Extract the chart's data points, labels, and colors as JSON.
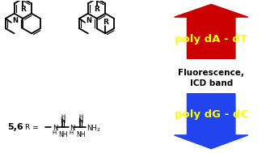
{
  "bg_color": "#ffffff",
  "red_box_text": "poly dA - dT",
  "blue_box_text": "poly dG - dC",
  "middle_text_line1": "Fluorescence,",
  "middle_text_line2": "ICD band",
  "red_color": "#cc0000",
  "blue_color": "#2244ee",
  "yellow_text_color": "#ffff00",
  "label_56": "5,6",
  "fig_width": 3.29,
  "fig_height": 1.89
}
